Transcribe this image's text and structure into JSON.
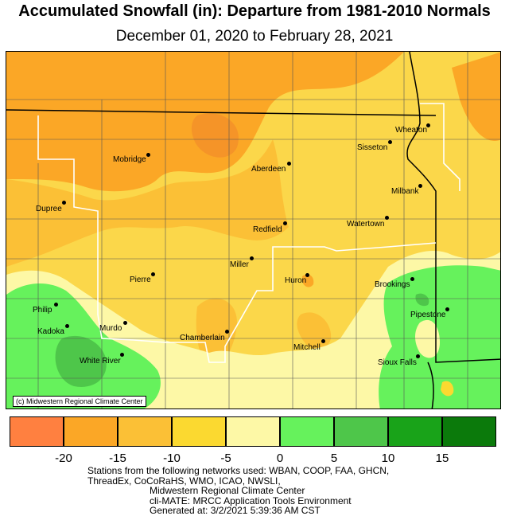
{
  "title": "Accumulated Snowfall (in): Departure from 1981-2010 Normals",
  "subtitle": "December 01, 2020 to February 28, 2021",
  "credit": "(c) Midwestern Regional Climate Center",
  "legend": {
    "colors": [
      "#ff8040",
      "#fba726",
      "#fbc036",
      "#fbd930",
      "#fdf8a6",
      "#66f25c",
      "#4ec64a",
      "#19a319",
      "#0b7a0b"
    ],
    "labels": [
      "-20",
      "-15",
      "-10",
      "-5",
      "0",
      "5",
      "10",
      "15"
    ]
  },
  "cities": [
    {
      "name": "Wheaton"
    },
    {
      "name": "Sisseton"
    },
    {
      "name": "Mobridge"
    },
    {
      "name": "Aberdeen"
    },
    {
      "name": "Milbank"
    },
    {
      "name": "Dupree"
    },
    {
      "name": "Watertown"
    },
    {
      "name": "Redfield"
    },
    {
      "name": "Miller"
    },
    {
      "name": "Huron"
    },
    {
      "name": "Brookings"
    },
    {
      "name": "Pierre"
    },
    {
      "name": "Philip"
    },
    {
      "name": "Pipestone"
    },
    {
      "name": "Kadoka"
    },
    {
      "name": "Murdo"
    },
    {
      "name": "Chamberlain"
    },
    {
      "name": "Mitchell"
    },
    {
      "name": "White River"
    },
    {
      "name": "Sioux Falls"
    }
  ],
  "footer": [
    "Stations from the following networks used: WBAN, COOP, FAA, GHCN,",
    "ThreadEx, CoCoRaHS, WMO, ICAO, NWSLI,",
    "Midwestern Regional Climate Center",
    "cli-MATE: MRCC Application Tools Environment",
    "Generated at: 3/2/2021 5:39:36 AM CST"
  ]
}
